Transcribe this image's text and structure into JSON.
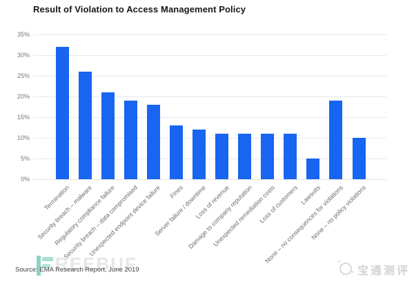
{
  "title": "Result of Violation to Access Management Policy",
  "source_note": "Source: EMA Research Report, June 2019",
  "watermarks": {
    "freebuf_text": "REEBUF",
    "brand_text": "宝通测评"
  },
  "chart_data": {
    "type": "bar",
    "title": "Result of Violation to Access Management Policy",
    "categories": [
      "Termination",
      "Security breach – malware",
      "Regulatory compliance failure",
      "Security breach – data compromised",
      "Unexpected endpoint device failure",
      "Fines",
      "Server failure / downtime",
      "Loss of revenue",
      "Damage to company reputation",
      "Unexpected remediation costs",
      "Loss of customers",
      "Lawsuits",
      "None – no consequences for violations",
      "None – no policy violations"
    ],
    "values": [
      32,
      26,
      21,
      19,
      18,
      13,
      12,
      11,
      11,
      11,
      11,
      5,
      19,
      10
    ],
    "unit": "%",
    "xlabel": "",
    "ylabel": "",
    "ylim": [
      0,
      35
    ],
    "ytick_step": 5,
    "ytick_labels": [
      "0%",
      "5%",
      "10%",
      "15%",
      "20%",
      "25%",
      "30%",
      "35%"
    ],
    "bar_color": "#1765f0",
    "grid_color": "#e8e8e8",
    "grid": "horizontal",
    "legend_position": "none",
    "tick_label_rotation_deg": -45
  }
}
